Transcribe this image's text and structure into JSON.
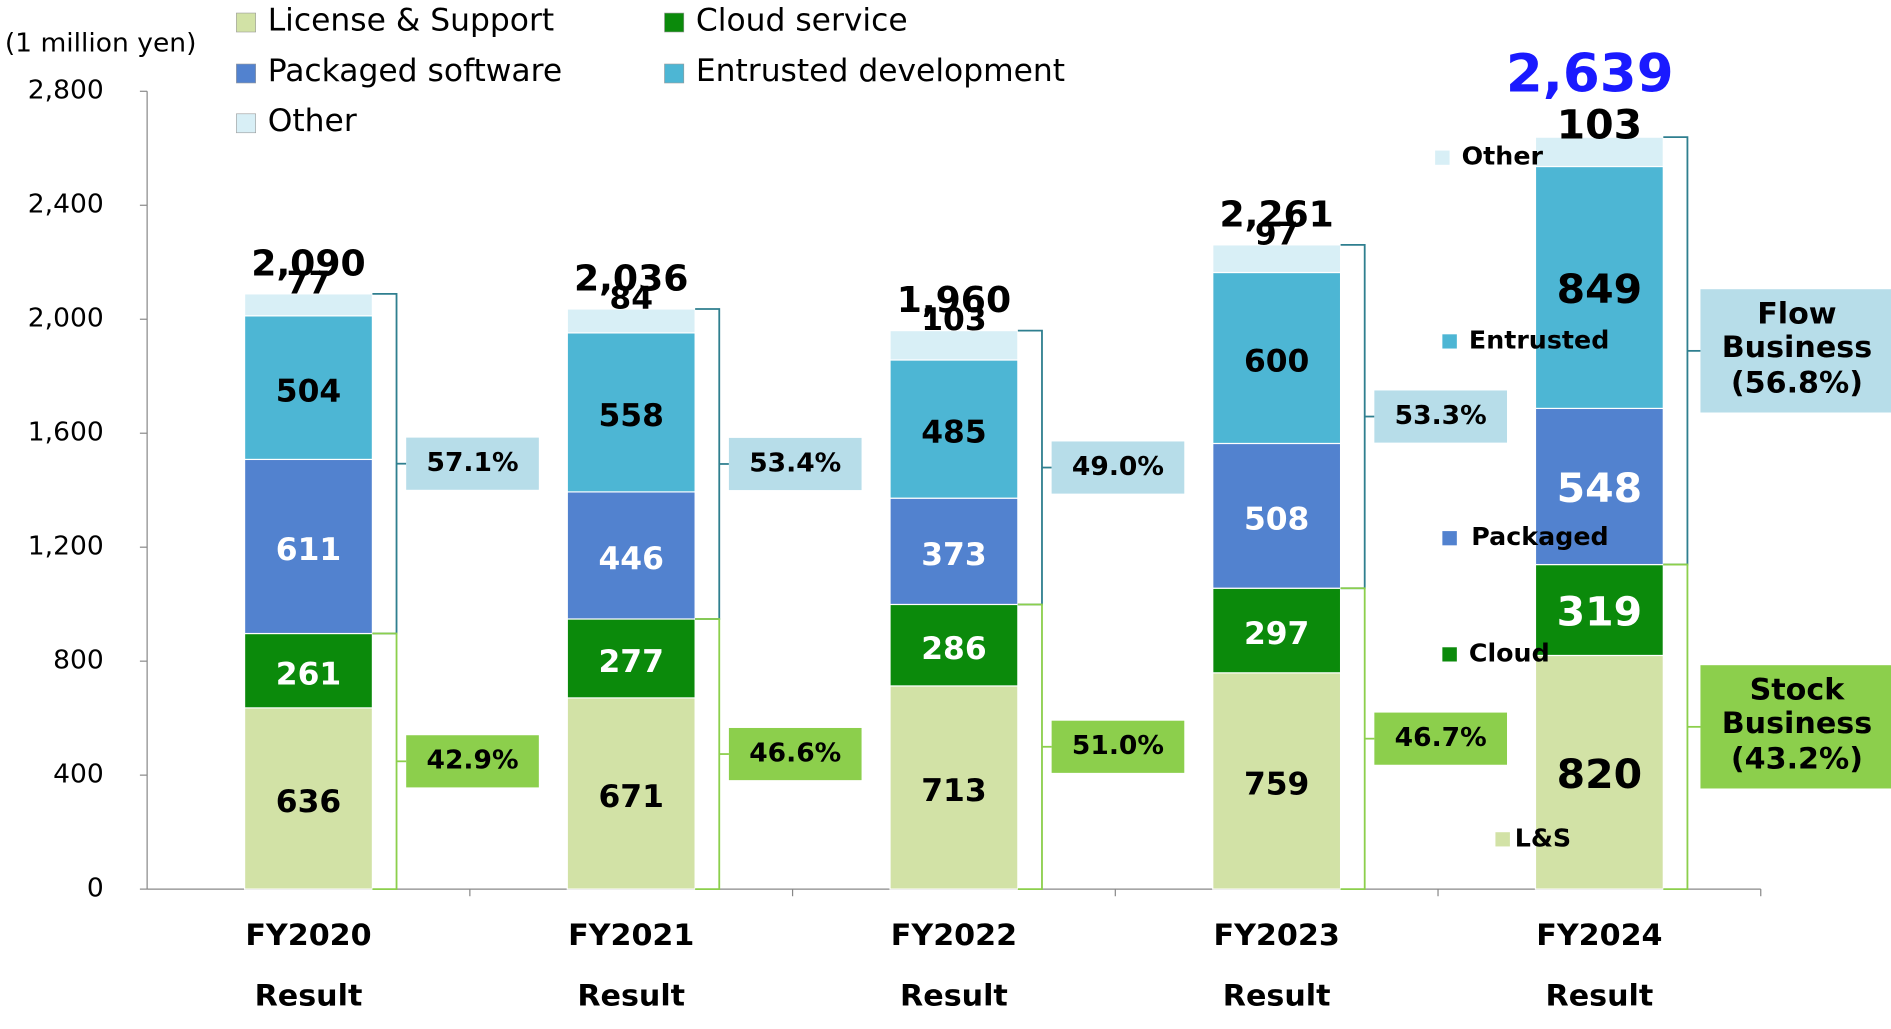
{
  "chart_data": {
    "type": "stacked_bar",
    "y_axis_label": "(1 million yen)",
    "categories": [
      "FY2020",
      "FY2021",
      "FY2022",
      "FY2023",
      "FY2024"
    ],
    "category_sublabel": "Result",
    "series": [
      {
        "name": "License & Support",
        "short_name": "L&S",
        "color": "#d2e2a6",
        "label_color": "#000",
        "values": [
          636,
          671,
          713,
          759,
          820
        ]
      },
      {
        "name": "Cloud service",
        "short_name": "Cloud",
        "color": "#0b8a0b",
        "label_color": "#fff",
        "values": [
          261,
          277,
          286,
          297,
          319
        ]
      },
      {
        "name": "Packaged software",
        "short_name": "Packaged",
        "color": "#5282cf",
        "label_color": "#fff",
        "values": [
          611,
          446,
          373,
          508,
          548
        ]
      },
      {
        "name": "Entrusted development",
        "short_name": "Entrusted",
        "color": "#4db6d4",
        "label_color": "#000",
        "values": [
          504,
          558,
          485,
          600,
          849
        ]
      },
      {
        "name": "Other",
        "short_name": "Other",
        "color": "#d8eff6",
        "label_color": "#000",
        "values": [
          77,
          84,
          103,
          97,
          103
        ]
      }
    ],
    "totals": {
      "values": [
        2090,
        2036,
        1960,
        2261,
        2639
      ],
      "value_labels": [
        "2,090",
        "2,036",
        "1,960",
        "2,261",
        "2,639"
      ]
    },
    "flow_share": {
      "color": "#b7dde9",
      "bracket_color": "#2f7f8f",
      "values": [
        57.1,
        53.4,
        49.0,
        53.3,
        56.8
      ],
      "value_labels": [
        "57.1%",
        "53.4%",
        "49.0%",
        "53.3%",
        "(56.8%)"
      ],
      "title": [
        "Flow",
        "Business"
      ]
    },
    "stock_share": {
      "color": "#8ccf4c",
      "bracket_color": "#8ccf4c",
      "values": [
        42.9,
        46.6,
        51.0,
        46.7,
        43.2
      ],
      "value_labels": [
        "42.9%",
        "46.6%",
        "51.0%",
        "46.7%",
        "(43.2%)"
      ],
      "title": [
        "Stock",
        "Business"
      ]
    },
    "ylim": [
      0,
      2800
    ],
    "yticks": [
      0,
      400,
      800,
      {
        "value": 1200,
        "label": "1,200"
      },
      {
        "value": 1600,
        "label": "1,600"
      },
      {
        "value": 2000,
        "label": "2,000"
      },
      {
        "value": 2400,
        "label": "2,400"
      },
      {
        "value": 2800,
        "label": "2,800"
      }
    ]
  }
}
